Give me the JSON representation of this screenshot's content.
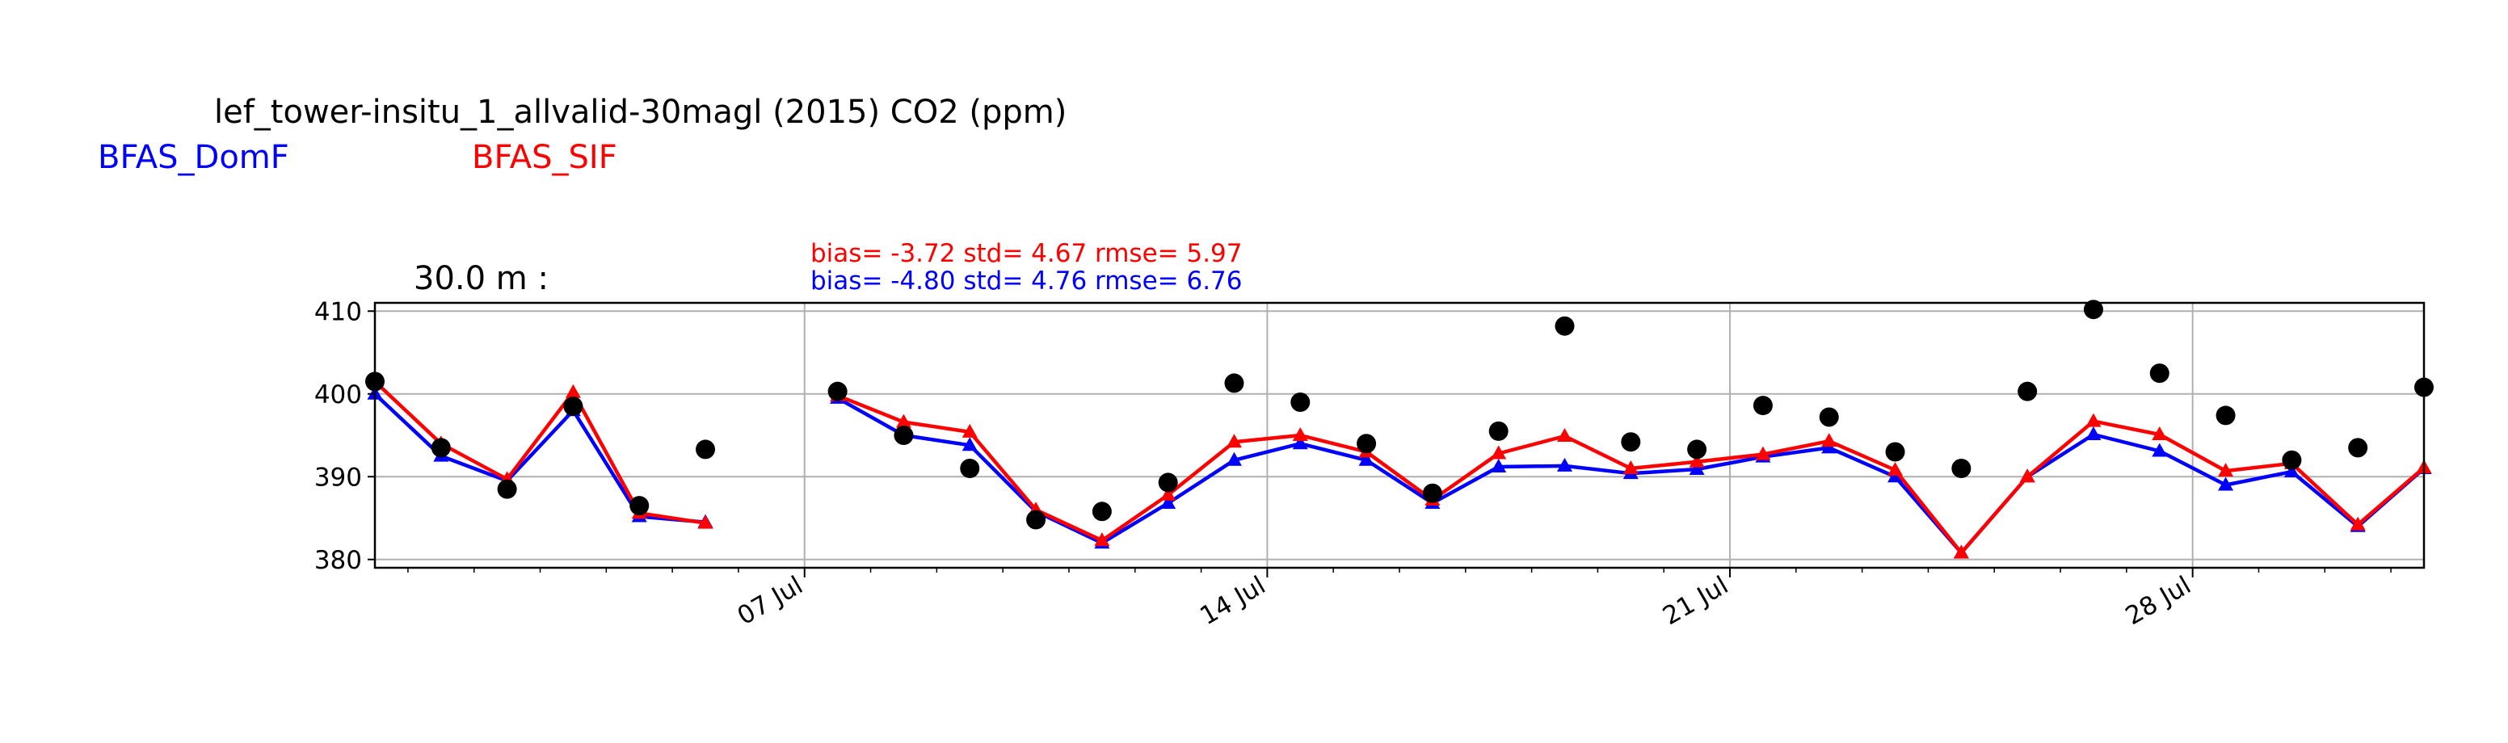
{
  "chart_data": {
    "type": "line",
    "title": "lef_tower-insitu_1_allvalid-30magl (2015) CO2 (ppm)",
    "panel_label": "30.0 m :",
    "xlabel": "",
    "ylabel": "",
    "x_range": [
      "2015-06-30T12:00",
      "2015-07-31T12:00"
    ],
    "ylim": [
      379,
      411
    ],
    "y_ticks": [
      380,
      390,
      400,
      410
    ],
    "x_ticks": [
      {
        "date": "2015-07-07",
        "label": "07 Jul"
      },
      {
        "date": "2015-07-14",
        "label": "14 Jul"
      },
      {
        "date": "2015-07-21",
        "label": "21 Jul"
      },
      {
        "date": "2015-07-28",
        "label": "28 Jul"
      }
    ],
    "minor_tick_dates": [
      "2015-07-01",
      "2015-07-02",
      "2015-07-03",
      "2015-07-04",
      "2015-07-05",
      "2015-07-06",
      "2015-07-08",
      "2015-07-09",
      "2015-07-10",
      "2015-07-11",
      "2015-07-12",
      "2015-07-13",
      "2015-07-15",
      "2015-07-16",
      "2015-07-17",
      "2015-07-18",
      "2015-07-19",
      "2015-07-20",
      "2015-07-22",
      "2015-07-23",
      "2015-07-24",
      "2015-07-25",
      "2015-07-26",
      "2015-07-27",
      "2015-07-29",
      "2015-07-30",
      "2015-07-31"
    ],
    "grid": true,
    "x": [
      "2015-06-30T12:00",
      "2015-07-01T12:00",
      "2015-07-02T12:00",
      "2015-07-03T12:00",
      "2015-07-04T12:00",
      "2015-07-05T12:00",
      "2015-07-06T12:00",
      "2015-07-07T12:00",
      "2015-07-08T12:00",
      "2015-07-09T12:00",
      "2015-07-10T12:00",
      "2015-07-11T12:00",
      "2015-07-12T12:00",
      "2015-07-13T12:00",
      "2015-07-14T12:00",
      "2015-07-15T12:00",
      "2015-07-16T12:00",
      "2015-07-17T12:00",
      "2015-07-18T12:00",
      "2015-07-19T12:00",
      "2015-07-20T12:00",
      "2015-07-21T12:00",
      "2015-07-22T12:00",
      "2015-07-23T12:00",
      "2015-07-24T12:00",
      "2015-07-25T12:00",
      "2015-07-26T12:00",
      "2015-07-27T12:00",
      "2015-07-28T12:00",
      "2015-07-29T12:00",
      "2015-07-30T12:00",
      "2015-07-31T12:00"
    ],
    "observations": {
      "color": "#000000",
      "values": [
        401.5,
        393.5,
        388.5,
        398.5,
        386.5,
        393.3,
        null,
        400.3,
        395.0,
        391.0,
        384.8,
        385.8,
        389.3,
        401.3,
        399.0,
        394.0,
        388.0,
        395.5,
        408.2,
        394.2,
        393.3,
        398.6,
        397.2,
        393.0,
        391.0,
        400.3,
        410.2,
        402.5,
        397.4,
        392.0,
        393.5,
        400.8
      ]
    },
    "series": [
      {
        "name": "BFAS_DomF",
        "color": "#0000ff",
        "marker": "triangle",
        "values": [
          400.0,
          392.5,
          389.5,
          398.0,
          385.2,
          384.5,
          null,
          399.5,
          395.0,
          393.8,
          385.8,
          382.0,
          386.8,
          392.0,
          394.0,
          392.0,
          386.8,
          391.2,
          391.3,
          390.4,
          390.9,
          392.4,
          393.5,
          390.0,
          380.8,
          390.0,
          395.1,
          393.1,
          389.0,
          390.6,
          384.0,
          391.0
        ]
      },
      {
        "name": "BFAS_SIF",
        "color": "#ff0000",
        "marker": "triangle",
        "values": [
          401.5,
          394.0,
          389.7,
          400.2,
          385.6,
          384.4,
          null,
          399.8,
          396.6,
          395.4,
          386.0,
          382.3,
          387.8,
          394.2,
          395.0,
          393.0,
          387.2,
          392.8,
          394.9,
          391.0,
          391.8,
          392.7,
          394.3,
          390.8,
          380.8,
          390.0,
          396.7,
          395.1,
          390.7,
          391.6,
          384.2,
          391.1
        ]
      }
    ],
    "legend": [
      {
        "label": "BFAS_DomF",
        "color": "#0000ff"
      },
      {
        "label": "BFAS_SIF",
        "color": "#ff0000"
      }
    ],
    "stats": [
      {
        "text": "bias= -3.72 std= 4.67 rmse= 5.97",
        "color": "#ff0000"
      },
      {
        "text": "bias= -4.80 std= 4.76 rmse= 6.76",
        "color": "#0000ff"
      }
    ]
  }
}
